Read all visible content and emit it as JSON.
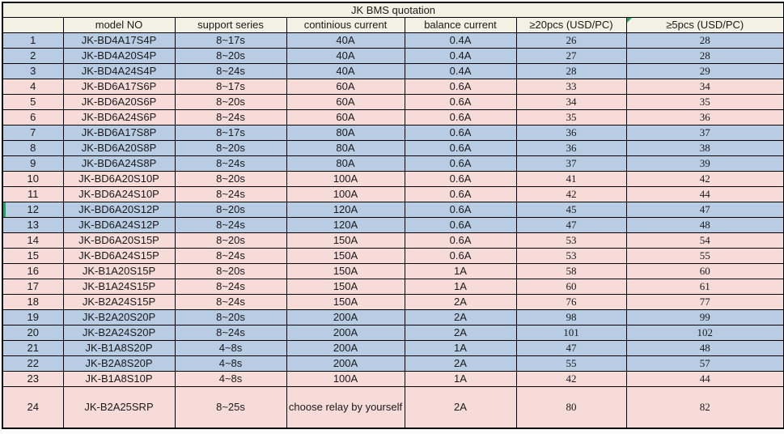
{
  "title": "JK BMS quotation",
  "columns": [
    "",
    "model NO",
    "support series",
    "continious current",
    "balance current",
    "≥20pcs (USD/PC)",
    "≥5pcs (USD/PC)"
  ],
  "annotations": {
    "comment_flag_column": 6,
    "marked_row_no": "12"
  },
  "colors": {
    "blue_row": "#b8cce4",
    "pink_row": "#f6dbd8",
    "header_bg": "#f2f1e3",
    "marker_green": "#21a366",
    "grid": "#000000"
  },
  "rows": [
    {
      "no": "1",
      "model": "JK-BD4A17S4P",
      "series": "8~17s",
      "current": "40A",
      "balance": "0.4A",
      "price_20pcs": "26",
      "price_5pcs": "28",
      "color": "blue"
    },
    {
      "no": "2",
      "model": "JK-BD4A20S4P",
      "series": "8~20s",
      "current": "40A",
      "balance": "0.4A",
      "price_20pcs": "27",
      "price_5pcs": "28",
      "color": "blue"
    },
    {
      "no": "3",
      "model": "JK-BD4A24S4P",
      "series": "8~24s",
      "current": "40A",
      "balance": "0.4A",
      "price_20pcs": "28",
      "price_5pcs": "29",
      "color": "blue"
    },
    {
      "no": "4",
      "model": "JK-BD6A17S6P",
      "series": "8~17s",
      "current": "60A",
      "balance": "0.6A",
      "price_20pcs": "33",
      "price_5pcs": "34",
      "color": "pink"
    },
    {
      "no": "5",
      "model": "JK-BD6A20S6P",
      "series": "8~20s",
      "current": "60A",
      "balance": "0.6A",
      "price_20pcs": "34",
      "price_5pcs": "35",
      "color": "pink"
    },
    {
      "no": "6",
      "model": "JK-BD6A24S6P",
      "series": "8~24s",
      "current": "60A",
      "balance": "0.6A",
      "price_20pcs": "35",
      "price_5pcs": "36",
      "color": "pink"
    },
    {
      "no": "7",
      "model": "JK-BD6A17S8P",
      "series": "8~17s",
      "current": "80A",
      "balance": "0.6A",
      "price_20pcs": "36",
      "price_5pcs": "37",
      "color": "blue"
    },
    {
      "no": "8",
      "model": "JK-BD6A20S8P",
      "series": "8~20s",
      "current": "80A",
      "balance": "0.6A",
      "price_20pcs": "36",
      "price_5pcs": "38",
      "color": "blue"
    },
    {
      "no": "9",
      "model": "JK-BD6A24S8P",
      "series": "8~24s",
      "current": "80A",
      "balance": "0.6A",
      "price_20pcs": "37",
      "price_5pcs": "39",
      "color": "blue"
    },
    {
      "no": "10",
      "model": "JK-BD6A20S10P",
      "series": "8~20s",
      "current": "100A",
      "balance": "0.6A",
      "price_20pcs": "41",
      "price_5pcs": "42",
      "color": "pink"
    },
    {
      "no": "11",
      "model": "JK-BD6A24S10P",
      "series": "8~24s",
      "current": "100A",
      "balance": "0.6A",
      "price_20pcs": "42",
      "price_5pcs": "44",
      "color": "pink"
    },
    {
      "no": "12",
      "model": "JK-BD6A20S12P",
      "series": "8~20s",
      "current": "120A",
      "balance": "0.6A",
      "price_20pcs": "45",
      "price_5pcs": "47",
      "color": "blue",
      "marker": true
    },
    {
      "no": "13",
      "model": "JK-BD6A24S12P",
      "series": "8~24s",
      "current": "120A",
      "balance": "0.6A",
      "price_20pcs": "47",
      "price_5pcs": "48",
      "color": "blue"
    },
    {
      "no": "14",
      "model": "JK-BD6A20S15P",
      "series": "8~20s",
      "current": "150A",
      "balance": "0.6A",
      "price_20pcs": "53",
      "price_5pcs": "54",
      "color": "pink"
    },
    {
      "no": "15",
      "model": "JK-BD6A24S15P",
      "series": "8~24s",
      "current": "150A",
      "balance": "0.6A",
      "price_20pcs": "53",
      "price_5pcs": "55",
      "color": "pink"
    },
    {
      "no": "16",
      "model": "JK-B1A20S15P",
      "series": "8~20s",
      "current": "150A",
      "balance": "1A",
      "price_20pcs": "58",
      "price_5pcs": "60",
      "color": "pink"
    },
    {
      "no": "17",
      "model": "JK-B1A24S15P",
      "series": "8~24s",
      "current": "150A",
      "balance": "1A",
      "price_20pcs": "60",
      "price_5pcs": "61",
      "color": "pink"
    },
    {
      "no": "18",
      "model": "JK-B2A24S15P",
      "series": "8~24s",
      "current": "150A",
      "balance": "2A",
      "price_20pcs": "76",
      "price_5pcs": "77",
      "color": "pink"
    },
    {
      "no": "19",
      "model": "JK-B2A20S20P",
      "series": "8~20s",
      "current": "200A",
      "balance": "2A",
      "price_20pcs": "98",
      "price_5pcs": "99",
      "color": "blue"
    },
    {
      "no": "20",
      "model": "JK-B2A24S20P",
      "series": "8~24s",
      "current": "200A",
      "balance": "2A",
      "price_20pcs": "101",
      "price_5pcs": "102",
      "color": "blue"
    },
    {
      "no": "21",
      "model": "JK-B1A8S20P",
      "series": "4~8s",
      "current": "200A",
      "balance": "1A",
      "price_20pcs": "47",
      "price_5pcs": "48",
      "color": "blue"
    },
    {
      "no": "22",
      "model": "JK-B2A8S20P",
      "series": "4~8s",
      "current": "200A",
      "balance": "2A",
      "price_20pcs": "55",
      "price_5pcs": "57",
      "color": "blue"
    },
    {
      "no": "23",
      "model": "JK-B1A8S10P",
      "series": "4~8s",
      "current": "100A",
      "balance": "1A",
      "price_20pcs": "42",
      "price_5pcs": "44",
      "color": "pink"
    },
    {
      "no": "24",
      "model": "JK-B2A25SRP",
      "series": "8~25s",
      "current": "choose relay by yourself",
      "balance": "2A",
      "price_20pcs": "80",
      "price_5pcs": "82",
      "color": "pink"
    }
  ]
}
